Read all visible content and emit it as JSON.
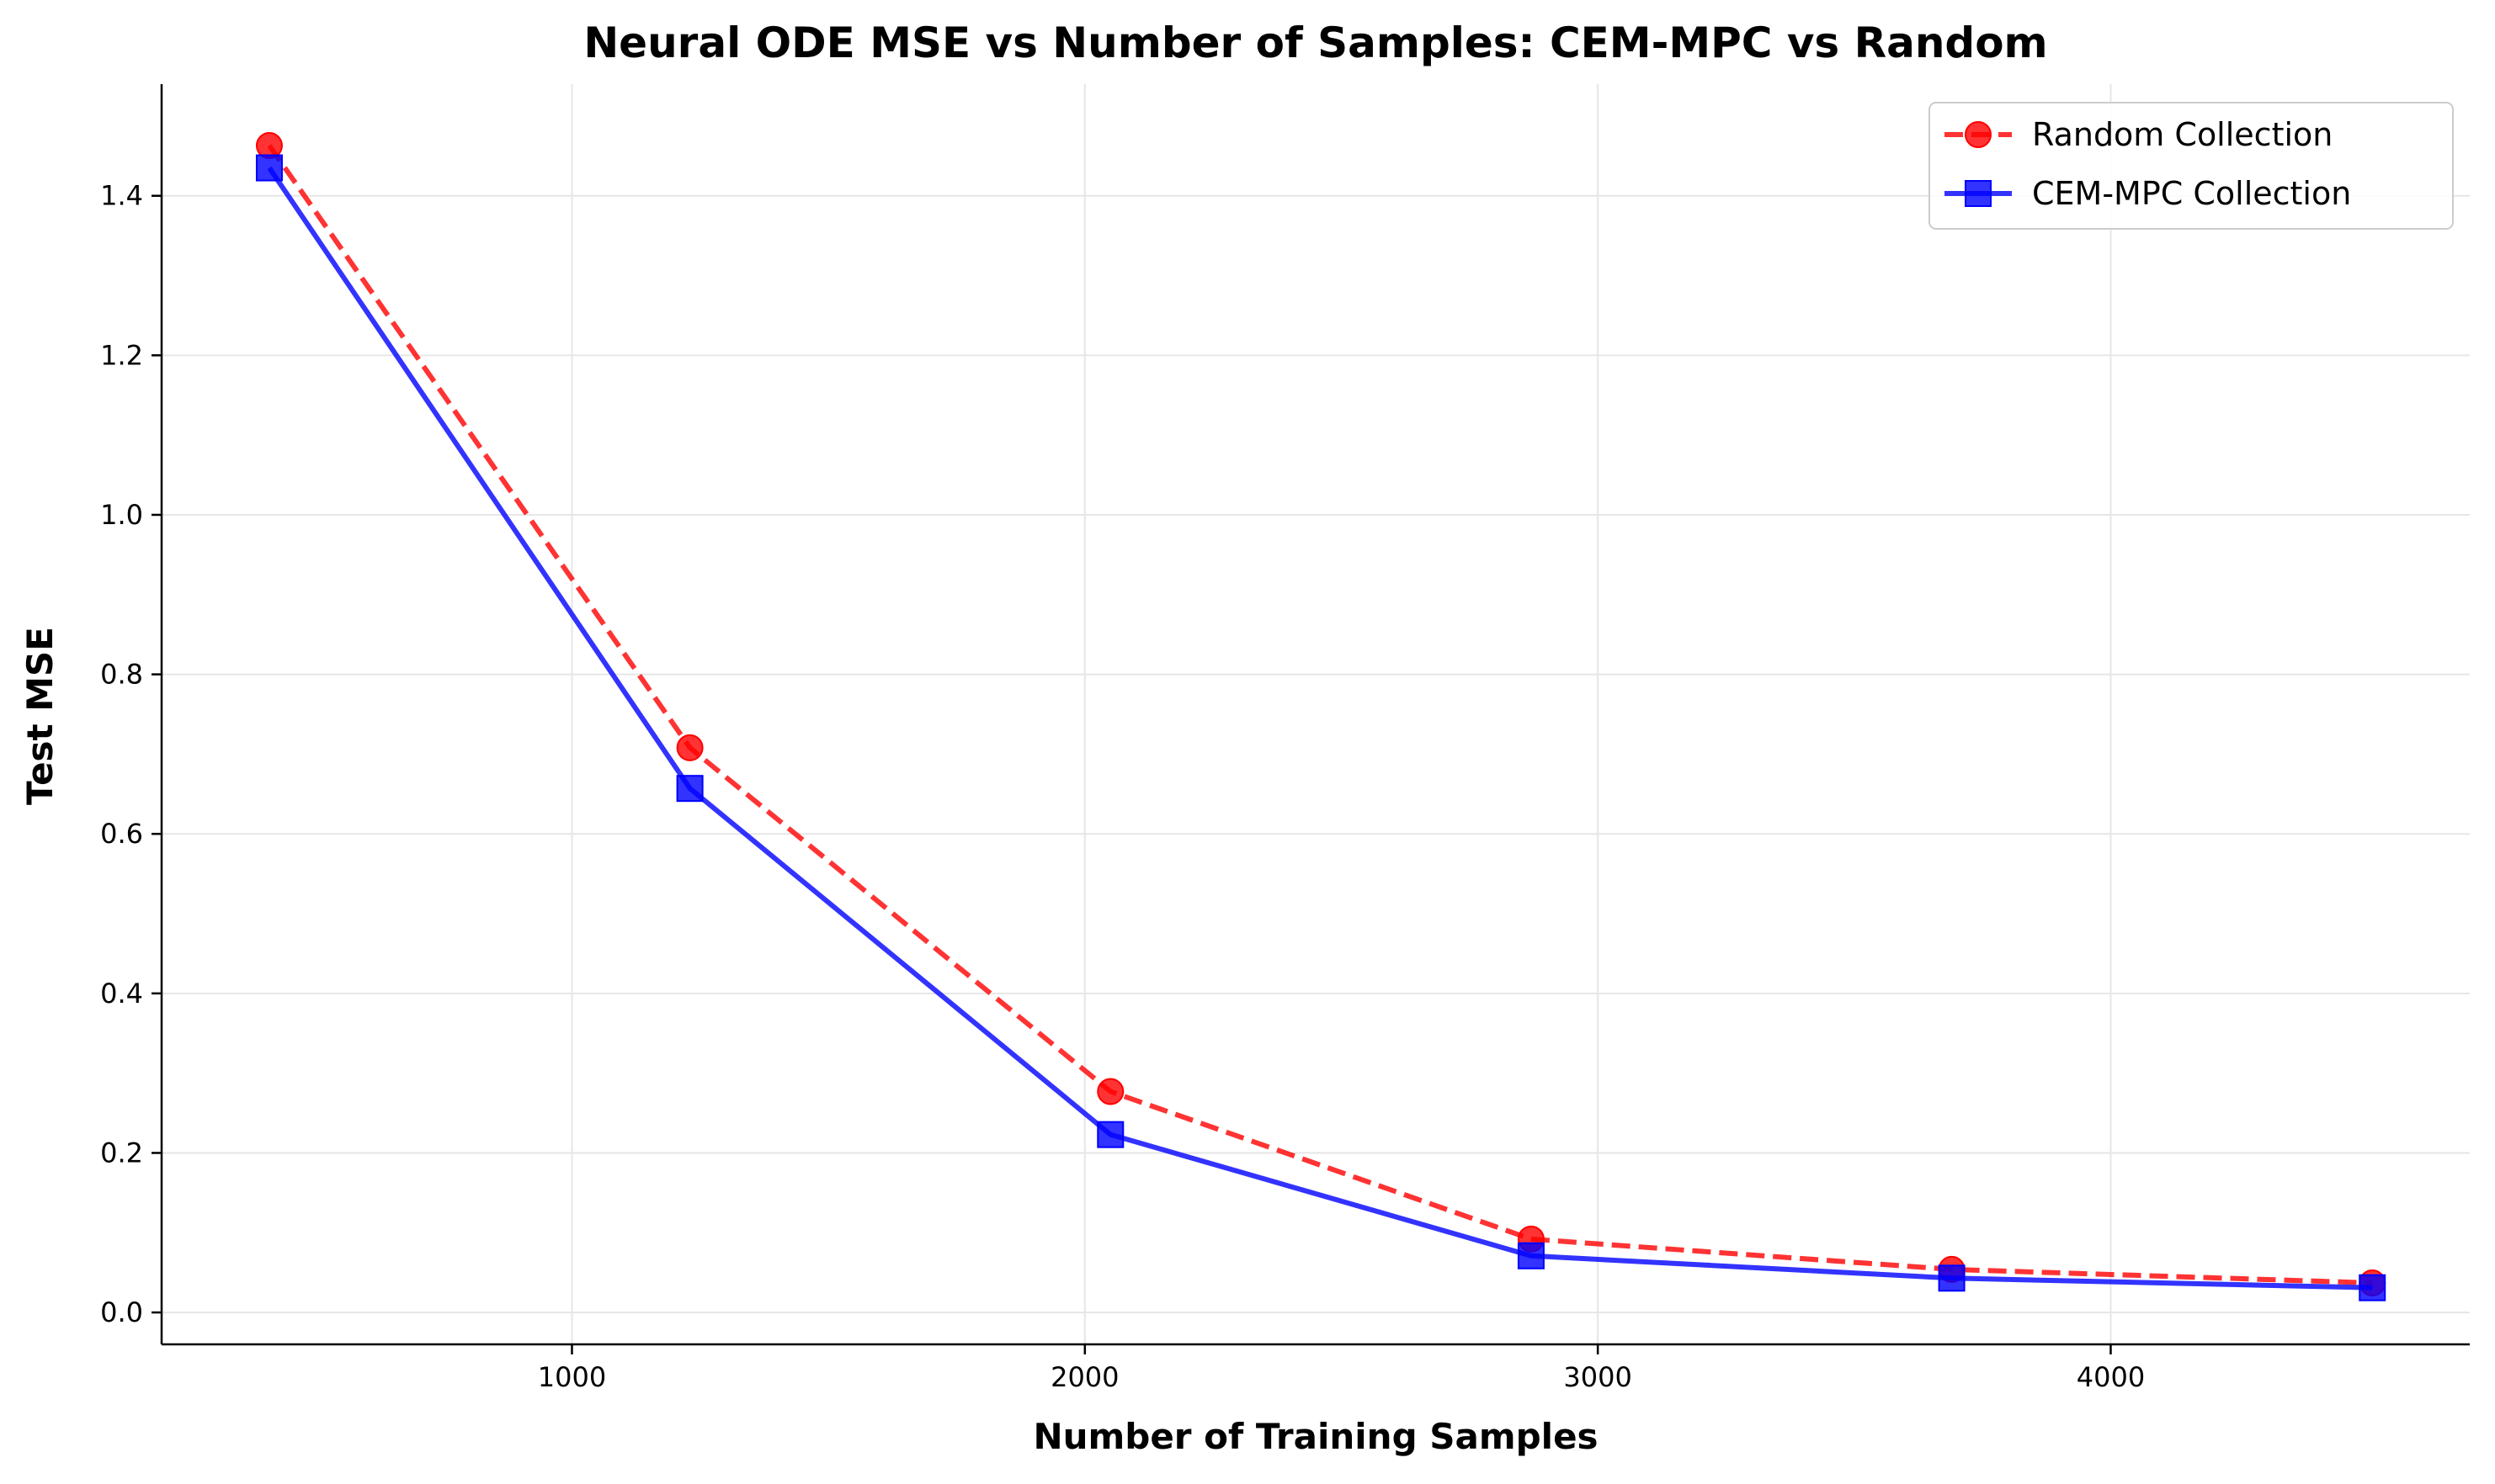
{
  "chart_data": {
    "type": "line",
    "title": "Neural ODE MSE vs Number of Samples: CEM-MPC vs Random",
    "xlabel": "Number of Training Samples",
    "ylabel": "Test MSE",
    "xlim": [
      200,
      4700
    ],
    "ylim": [
      -0.04,
      1.54
    ],
    "x_ticks": [
      1000,
      2000,
      3000,
      4000
    ],
    "y_ticks": [
      0.0,
      0.2,
      0.4,
      0.6,
      0.8,
      1.0,
      1.2,
      1.4
    ],
    "grid": true,
    "legend_position": "top-right",
    "series": [
      {
        "name": "Random Collection",
        "color": "#ff0000",
        "line_style": "dashed",
        "marker": "circle",
        "x": [
          410,
          1230,
          2050,
          2870,
          3690,
          4510
        ],
        "y": [
          1.463,
          0.708,
          0.277,
          0.092,
          0.054,
          0.037
        ]
      },
      {
        "name": "CEM-MPC Collection",
        "color": "#0000ff",
        "line_style": "solid",
        "marker": "square",
        "x": [
          410,
          1230,
          2050,
          2870,
          3690,
          4510
        ],
        "y": [
          1.435,
          0.657,
          0.223,
          0.071,
          0.043,
          0.031
        ]
      }
    ]
  }
}
